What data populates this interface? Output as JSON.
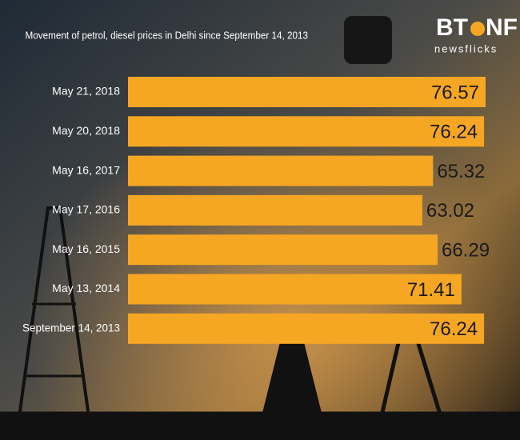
{
  "brand": {
    "left": "BT",
    "right": "NF",
    "tagline": "newsflicks"
  },
  "chart_data": {
    "type": "bar",
    "orientation": "horizontal",
    "title": "Movement of petrol, diesel prices in Delhi since September 14, 2013",
    "categories": [
      "May 21, 2018",
      "May 20, 2018",
      "May 16, 2017",
      "May 17, 2016",
      "May 16, 2015",
      "May 13, 2014",
      "September 14, 2013"
    ],
    "values": [
      76.57,
      76.24,
      65.32,
      63.02,
      66.29,
      71.41,
      76.24
    ],
    "color": "#f5a623"
  }
}
